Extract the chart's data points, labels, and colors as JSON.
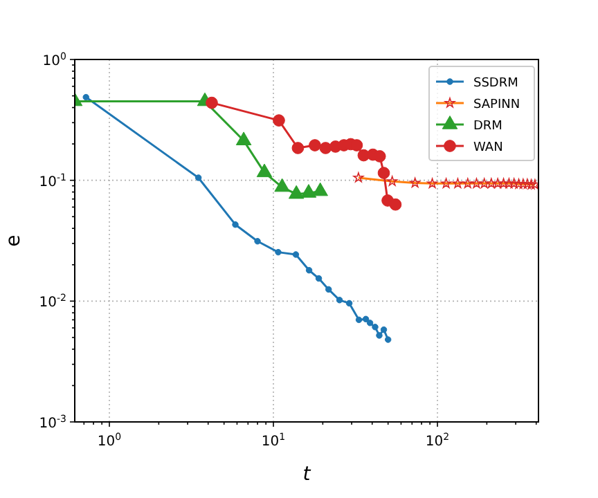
{
  "chart_data": {
    "type": "line",
    "xlabel": "t",
    "ylabel": "e",
    "log": "xy",
    "grid": true,
    "legend": "top right",
    "xlim": [
      0.615,
      413
    ],
    "ylim": [
      0.001,
      1
    ],
    "xticks": [
      {
        "value": 0.7,
        "label": null
      },
      {
        "value": 0.8,
        "label": null
      },
      {
        "value": 0.9,
        "label": null
      },
      {
        "value": 1,
        "label": "10$^{0}$"
      },
      {
        "value": 2,
        "label": null
      },
      {
        "value": 3,
        "label": null
      },
      {
        "value": 4,
        "label": null
      },
      {
        "value": 5,
        "label": null
      },
      {
        "value": 6,
        "label": null
      },
      {
        "value": 7,
        "label": null
      },
      {
        "value": 8,
        "label": null
      },
      {
        "value": 9,
        "label": null
      },
      {
        "value": 10,
        "label": "10$^{1}$"
      },
      {
        "value": 20,
        "label": null
      },
      {
        "value": 30,
        "label": null
      },
      {
        "value": 40,
        "label": null
      },
      {
        "value": 50,
        "label": null
      },
      {
        "value": 60,
        "label": null
      },
      {
        "value": 70,
        "label": null
      },
      {
        "value": 80,
        "label": null
      },
      {
        "value": 90,
        "label": null
      },
      {
        "value": 100,
        "label": "10$^{2}$"
      },
      {
        "value": 200,
        "label": null
      },
      {
        "value": 300,
        "label": null
      },
      {
        "value": 400,
        "label": null
      }
    ],
    "yticks": [
      {
        "value": 0.001,
        "label": "10$^{-3}$"
      },
      {
        "value": 0.002,
        "label": null
      },
      {
        "value": 0.003,
        "label": null
      },
      {
        "value": 0.004,
        "label": null
      },
      {
        "value": 0.005,
        "label": null
      },
      {
        "value": 0.006,
        "label": null
      },
      {
        "value": 0.007,
        "label": null
      },
      {
        "value": 0.008,
        "label": null
      },
      {
        "value": 0.009,
        "label": null
      },
      {
        "value": 0.01,
        "label": "10$^{-2}$"
      },
      {
        "value": 0.02,
        "label": null
      },
      {
        "value": 0.03,
        "label": null
      },
      {
        "value": 0.04,
        "label": null
      },
      {
        "value": 0.05,
        "label": null
      },
      {
        "value": 0.06,
        "label": null
      },
      {
        "value": 0.07,
        "label": null
      },
      {
        "value": 0.08,
        "label": null
      },
      {
        "value": 0.09,
        "label": null
      },
      {
        "value": 0.1,
        "label": "10$^{-1}$"
      },
      {
        "value": 0.2,
        "label": null
      },
      {
        "value": 0.3,
        "label": null
      },
      {
        "value": 0.4,
        "label": null
      },
      {
        "value": 0.5,
        "label": null
      },
      {
        "value": 0.6,
        "label": null
      },
      {
        "value": 0.7,
        "label": null
      },
      {
        "value": 0.8,
        "label": null
      },
      {
        "value": 0.9,
        "label": null
      },
      {
        "value": 1,
        "label": "10$^{0}$"
      }
    ],
    "series": [
      {
        "name": "SSDRM",
        "color": "#1f77b4",
        "marker": "circle",
        "x": [
          0.72,
          3.49,
          5.86,
          8.0,
          10.7,
          13.7,
          16.5,
          18.9,
          21.7,
          25.3,
          29.0,
          33.2,
          36.6,
          38.8,
          41.7,
          44.2,
          47.1,
          50.0
        ],
        "values": [
          0.487,
          0.105,
          0.043,
          0.0313,
          0.0254,
          0.0243,
          0.018,
          0.0154,
          0.0125,
          0.0102,
          0.0096,
          0.007,
          0.0071,
          0.0066,
          0.0061,
          0.0052,
          0.0058,
          0.0048
        ]
      },
      {
        "name": "SAPINN",
        "color": "#ff7f0e",
        "marker": "star",
        "x": [
          33,
          53,
          73,
          93,
          113,
          133,
          153,
          173,
          193,
          213,
          233,
          253,
          273,
          293,
          313,
          333,
          353,
          373,
          393
        ],
        "values": [
          0.105,
          0.098,
          0.095,
          0.094,
          0.094,
          0.094,
          0.094,
          0.094,
          0.094,
          0.094,
          0.094,
          0.094,
          0.094,
          0.094,
          0.093,
          0.093,
          0.093,
          0.092,
          0.092
        ]
      },
      {
        "name": "DRM",
        "color": "#2ca02c",
        "marker": "triangle",
        "x": [
          0.615,
          3.82,
          6.59,
          8.81,
          11.3,
          13.8,
          16.4,
          19.3
        ],
        "values": [
          0.45,
          0.45,
          0.213,
          0.116,
          0.0877,
          0.0768,
          0.0785,
          0.081
        ]
      },
      {
        "name": "WAN",
        "color": "#d62728",
        "marker": "circle",
        "x": [
          4.21,
          10.8,
          14.1,
          17.9,
          20.8,
          23.9,
          26.9,
          29.6,
          32.2,
          35.5,
          40.4,
          44.5,
          47.1,
          49.7,
          53,
          55.5
        ],
        "values": [
          0.438,
          0.313,
          0.185,
          0.195,
          0.185,
          0.19,
          0.195,
          0.199,
          0.195,
          0.161,
          0.163,
          0.158,
          0.115,
          0.068,
          null,
          0.063
        ]
      }
    ]
  }
}
